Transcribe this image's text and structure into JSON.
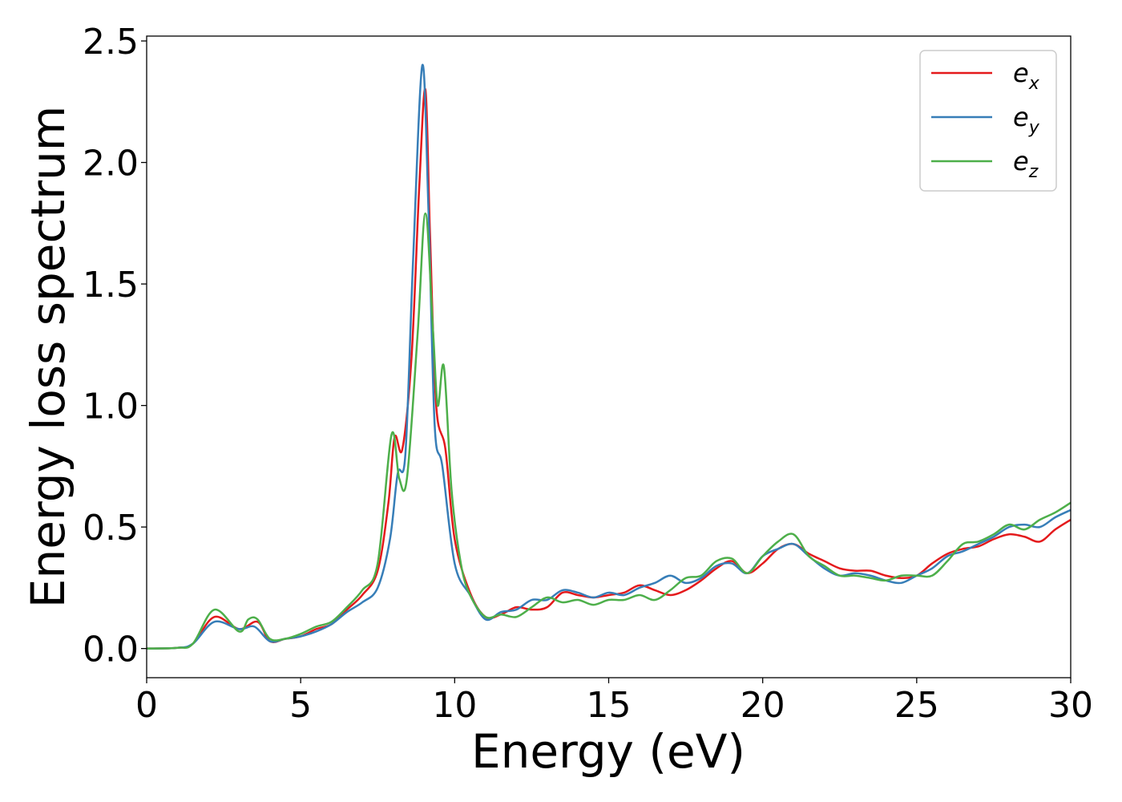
{
  "chart_data": {
    "type": "line",
    "xlabel": "Energy (eV)",
    "ylabel": "Energy loss spectrum",
    "xlim": [
      0,
      30
    ],
    "ylim": [
      -0.12,
      2.52
    ],
    "xticks": [
      "0",
      "5",
      "10",
      "15",
      "20",
      "25",
      "30"
    ],
    "yticks": [
      "0.0",
      "0.5",
      "1.0",
      "1.5",
      "2.0",
      "2.5"
    ],
    "grid": false,
    "legend_position": "top-right",
    "series": [
      {
        "name": "e",
        "subscript": "x",
        "color": "#e41a1c",
        "points": [
          [
            0,
            0
          ],
          [
            1,
            0.003
          ],
          [
            1.5,
            0.02
          ],
          [
            2.2,
            0.13
          ],
          [
            3.0,
            0.08
          ],
          [
            3.6,
            0.11
          ],
          [
            4.0,
            0.03
          ],
          [
            4.5,
            0.04
          ],
          [
            5,
            0.05
          ],
          [
            5.5,
            0.08
          ],
          [
            6,
            0.1
          ],
          [
            6.5,
            0.16
          ],
          [
            7,
            0.22
          ],
          [
            7.5,
            0.32
          ],
          [
            7.85,
            0.6
          ],
          [
            8.05,
            0.87
          ],
          [
            8.3,
            0.82
          ],
          [
            8.6,
            1.2
          ],
          [
            8.85,
            1.9
          ],
          [
            9.05,
            2.3
          ],
          [
            9.2,
            1.7
          ],
          [
            9.4,
            1.0
          ],
          [
            9.7,
            0.82
          ],
          [
            10,
            0.45
          ],
          [
            10.5,
            0.23
          ],
          [
            11,
            0.13
          ],
          [
            11.5,
            0.14
          ],
          [
            12,
            0.17
          ],
          [
            12.5,
            0.16
          ],
          [
            13,
            0.17
          ],
          [
            13.5,
            0.23
          ],
          [
            14,
            0.22
          ],
          [
            14.5,
            0.21
          ],
          [
            15,
            0.22
          ],
          [
            15.5,
            0.23
          ],
          [
            16,
            0.26
          ],
          [
            16.5,
            0.24
          ],
          [
            17,
            0.22
          ],
          [
            17.5,
            0.24
          ],
          [
            18,
            0.28
          ],
          [
            18.5,
            0.33
          ],
          [
            19,
            0.36
          ],
          [
            19.5,
            0.31
          ],
          [
            20,
            0.35
          ],
          [
            20.5,
            0.41
          ],
          [
            21,
            0.43
          ],
          [
            21.5,
            0.39
          ],
          [
            22,
            0.36
          ],
          [
            22.5,
            0.33
          ],
          [
            23,
            0.32
          ],
          [
            23.5,
            0.32
          ],
          [
            24,
            0.3
          ],
          [
            24.5,
            0.29
          ],
          [
            25,
            0.3
          ],
          [
            25.5,
            0.35
          ],
          [
            26,
            0.39
          ],
          [
            26.5,
            0.41
          ],
          [
            27,
            0.42
          ],
          [
            27.5,
            0.45
          ],
          [
            28,
            0.47
          ],
          [
            28.5,
            0.46
          ],
          [
            29,
            0.44
          ],
          [
            29.5,
            0.49
          ],
          [
            30,
            0.53
          ]
        ]
      },
      {
        "name": "e",
        "subscript": "y",
        "color": "#377eb8",
        "points": [
          [
            0,
            0
          ],
          [
            1,
            0.003
          ],
          [
            1.5,
            0.02
          ],
          [
            2.2,
            0.11
          ],
          [
            3.0,
            0.08
          ],
          [
            3.5,
            0.09
          ],
          [
            4.0,
            0.03
          ],
          [
            4.5,
            0.04
          ],
          [
            5,
            0.05
          ],
          [
            5.5,
            0.07
          ],
          [
            6,
            0.1
          ],
          [
            6.5,
            0.15
          ],
          [
            7,
            0.19
          ],
          [
            7.5,
            0.25
          ],
          [
            7.9,
            0.45
          ],
          [
            8.15,
            0.72
          ],
          [
            8.4,
            0.8
          ],
          [
            8.65,
            1.6
          ],
          [
            8.95,
            2.4
          ],
          [
            9.15,
            1.8
          ],
          [
            9.35,
            0.92
          ],
          [
            9.6,
            0.75
          ],
          [
            10,
            0.35
          ],
          [
            10.5,
            0.22
          ],
          [
            11,
            0.12
          ],
          [
            11.5,
            0.15
          ],
          [
            12,
            0.16
          ],
          [
            12.5,
            0.2
          ],
          [
            13,
            0.2
          ],
          [
            13.5,
            0.24
          ],
          [
            14,
            0.23
          ],
          [
            14.5,
            0.21
          ],
          [
            15,
            0.23
          ],
          [
            15.5,
            0.22
          ],
          [
            16,
            0.25
          ],
          [
            16.5,
            0.27
          ],
          [
            17,
            0.3
          ],
          [
            17.5,
            0.27
          ],
          [
            18,
            0.29
          ],
          [
            18.5,
            0.34
          ],
          [
            19,
            0.35
          ],
          [
            19.5,
            0.31
          ],
          [
            20,
            0.38
          ],
          [
            20.5,
            0.41
          ],
          [
            21,
            0.43
          ],
          [
            21.5,
            0.38
          ],
          [
            22,
            0.33
          ],
          [
            22.5,
            0.3
          ],
          [
            23,
            0.31
          ],
          [
            23.5,
            0.3
          ],
          [
            24,
            0.28
          ],
          [
            24.5,
            0.27
          ],
          [
            25,
            0.3
          ],
          [
            25.5,
            0.33
          ],
          [
            26,
            0.38
          ],
          [
            26.5,
            0.4
          ],
          [
            27,
            0.43
          ],
          [
            27.5,
            0.46
          ],
          [
            28,
            0.5
          ],
          [
            28.5,
            0.51
          ],
          [
            29,
            0.5
          ],
          [
            29.5,
            0.54
          ],
          [
            30,
            0.57
          ]
        ]
      },
      {
        "name": "e",
        "subscript": "z",
        "color": "#4daf4a",
        "points": [
          [
            0,
            0
          ],
          [
            1,
            0.003
          ],
          [
            1.5,
            0.02
          ],
          [
            2.2,
            0.16
          ],
          [
            3.0,
            0.07
          ],
          [
            3.3,
            0.12
          ],
          [
            3.6,
            0.12
          ],
          [
            4.0,
            0.04
          ],
          [
            4.5,
            0.04
          ],
          [
            5,
            0.06
          ],
          [
            5.5,
            0.09
          ],
          [
            6,
            0.11
          ],
          [
            6.5,
            0.17
          ],
          [
            7,
            0.24
          ],
          [
            7.5,
            0.35
          ],
          [
            7.95,
            0.88
          ],
          [
            8.2,
            0.7
          ],
          [
            8.45,
            0.7
          ],
          [
            8.8,
            1.3
          ],
          [
            9.05,
            1.79
          ],
          [
            9.3,
            1.3
          ],
          [
            9.45,
            1.0
          ],
          [
            9.65,
            1.16
          ],
          [
            9.9,
            0.65
          ],
          [
            10.2,
            0.35
          ],
          [
            10.5,
            0.22
          ],
          [
            11,
            0.13
          ],
          [
            11.5,
            0.14
          ],
          [
            12,
            0.13
          ],
          [
            12.5,
            0.17
          ],
          [
            13,
            0.21
          ],
          [
            13.5,
            0.19
          ],
          [
            14,
            0.2
          ],
          [
            14.5,
            0.18
          ],
          [
            15,
            0.2
          ],
          [
            15.5,
            0.2
          ],
          [
            16,
            0.22
          ],
          [
            16.5,
            0.2
          ],
          [
            17,
            0.24
          ],
          [
            17.5,
            0.29
          ],
          [
            18,
            0.3
          ],
          [
            18.5,
            0.36
          ],
          [
            19,
            0.37
          ],
          [
            19.5,
            0.31
          ],
          [
            20,
            0.38
          ],
          [
            20.5,
            0.44
          ],
          [
            21,
            0.47
          ],
          [
            21.5,
            0.38
          ],
          [
            22,
            0.34
          ],
          [
            22.5,
            0.3
          ],
          [
            23,
            0.3
          ],
          [
            23.5,
            0.29
          ],
          [
            24,
            0.28
          ],
          [
            24.5,
            0.3
          ],
          [
            25,
            0.3
          ],
          [
            25.5,
            0.3
          ],
          [
            26,
            0.36
          ],
          [
            26.5,
            0.43
          ],
          [
            27,
            0.44
          ],
          [
            27.5,
            0.47
          ],
          [
            28,
            0.51
          ],
          [
            28.5,
            0.49
          ],
          [
            29,
            0.53
          ],
          [
            29.5,
            0.56
          ],
          [
            30,
            0.6
          ]
        ]
      }
    ]
  }
}
